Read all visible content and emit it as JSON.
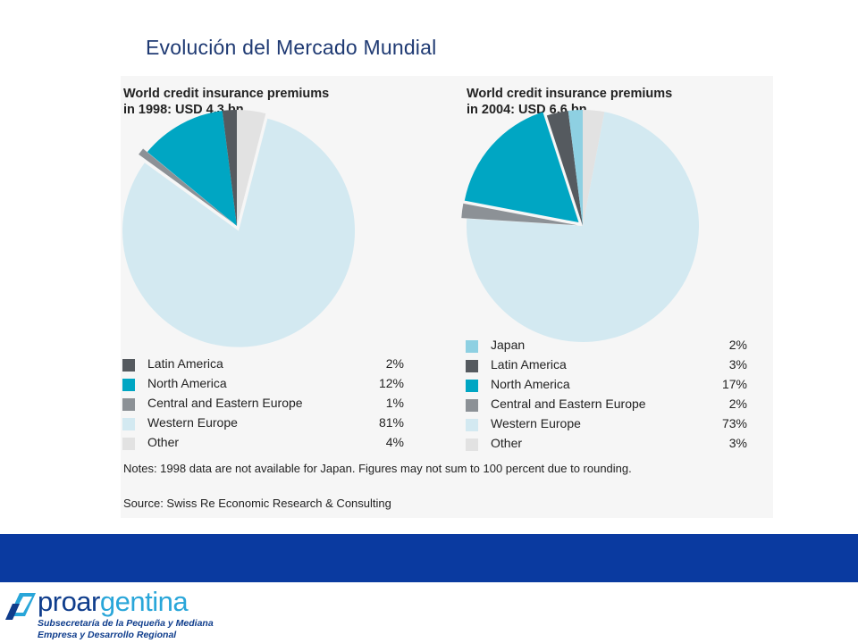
{
  "slide": {
    "title": "Evolución del Mercado Mundial"
  },
  "chart_data": [
    {
      "type": "pie",
      "title": "World credit insurance premiums\nin 1998: USD 4.3 bn",
      "labels": [
        "Latin America",
        "North America",
        "Central and Eastern Europe",
        "Western Europe",
        "Other"
      ],
      "values": [
        2,
        12,
        1,
        81,
        4
      ],
      "value_labels": [
        "2%",
        "12%",
        "1%",
        "81%",
        "4%"
      ],
      "colors": [
        "#555a5f",
        "#00a6c3",
        "#8c9196",
        "#d3e9f1",
        "#e2e2e2"
      ],
      "slice_order": [
        4,
        3,
        2,
        1,
        0
      ],
      "exploded": [
        false,
        false,
        true,
        true,
        false
      ]
    },
    {
      "type": "pie",
      "title": "World credit insurance premiums\nin 2004: USD 6.6 bn",
      "labels": [
        "Japan",
        "Latin America",
        "North America",
        "Central and Eastern Europe",
        "Western Europe",
        "Other"
      ],
      "values": [
        2,
        3,
        17,
        2,
        73,
        3
      ],
      "value_labels": [
        "2%",
        "3%",
        "17%",
        "2%",
        "73%",
        "3%"
      ],
      "colors": [
        "#8ed0e2",
        "#555a5f",
        "#00a6c3",
        "#8c9196",
        "#d3e9f1",
        "#e2e2e2"
      ],
      "slice_order": [
        5,
        4,
        3,
        2,
        1,
        0
      ],
      "exploded": [
        false,
        false,
        true,
        true,
        false,
        false
      ]
    }
  ],
  "notes": {
    "note": "Notes: 1998 data are not available for Japan. Figures may not sum to 100 percent due to rounding.",
    "source": "Source: Swiss Re Economic Research & Consulting"
  },
  "logo": {
    "word_start": "proar",
    "word_end": "gentina",
    "subtitle_line1": "Subsecretaría de la Pequeña y Mediana",
    "subtitle_line2": "Empresa y Desarrollo Regional"
  }
}
